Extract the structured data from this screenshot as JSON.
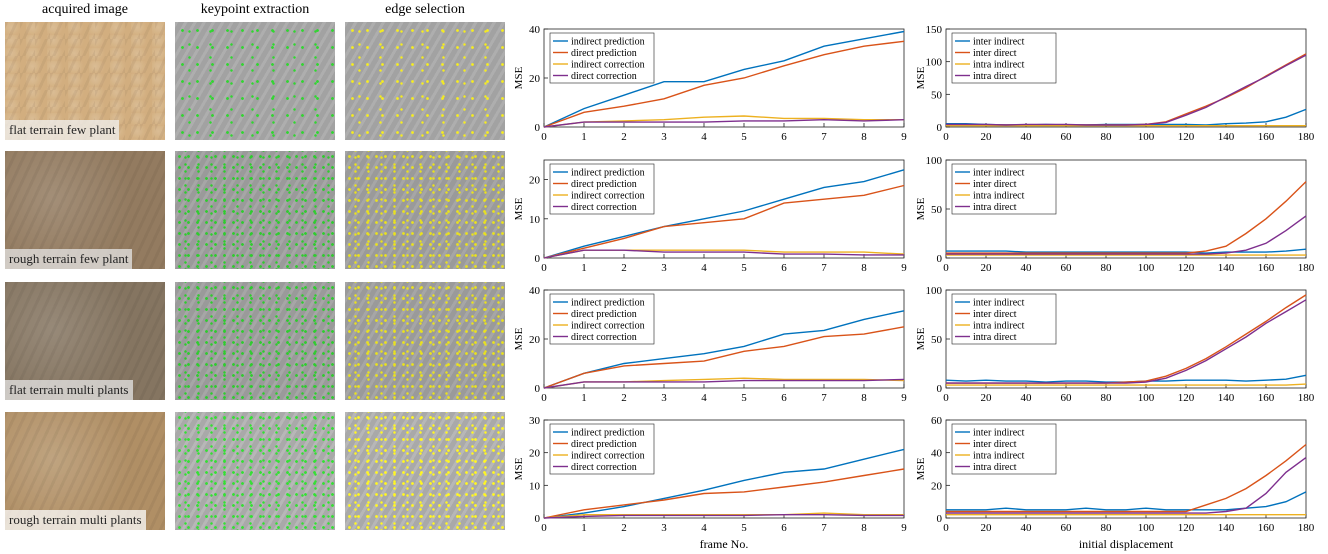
{
  "figure": {
    "columns": [
      "acquired image",
      "keypoint extraction",
      "edge selection"
    ],
    "row_labels": [
      "flat terrain few plant",
      "rough terrain few plant",
      "flat terrain multi plants",
      "rough terrain multi plants"
    ]
  },
  "chart_data": [
    {
      "type": "line",
      "ylabel": "MSE",
      "x": [
        0,
        1,
        2,
        3,
        4,
        5,
        6,
        7,
        8,
        9
      ],
      "xlim": [
        0,
        9
      ],
      "xticks": [
        0,
        1,
        2,
        3,
        4,
        5,
        6,
        7,
        8,
        9
      ],
      "ylim": [
        0,
        40
      ],
      "yticks": [
        0,
        20,
        40
      ],
      "legend": "upper left",
      "series": [
        {
          "name": "indirect prediction",
          "color": "#0072bd",
          "values": [
            0,
            7.5,
            13,
            18.5,
            18.5,
            23.5,
            27,
            33,
            36,
            39
          ]
        },
        {
          "name": "direct prediction",
          "color": "#d95319",
          "values": [
            0,
            6,
            8.5,
            11.5,
            17,
            20,
            25,
            29.5,
            33,
            35
          ]
        },
        {
          "name": "indirect correction",
          "color": "#edb120",
          "values": [
            0,
            2,
            2.5,
            3,
            4,
            4.5,
            3.5,
            3.5,
            3,
            3
          ]
        },
        {
          "name": "direct correction",
          "color": "#7e2f8e",
          "values": [
            0,
            2,
            2,
            2,
            2,
            2.5,
            2.5,
            3,
            2.5,
            3
          ]
        }
      ]
    },
    {
      "type": "line",
      "ylabel": "MSE",
      "x": [
        0,
        1,
        2,
        3,
        4,
        5,
        6,
        7,
        8,
        9
      ],
      "xlim": [
        0,
        9
      ],
      "xticks": [
        0,
        1,
        2,
        3,
        4,
        5,
        6,
        7,
        8,
        9
      ],
      "ylim": [
        0,
        25
      ],
      "yticks": [
        0,
        10,
        20
      ],
      "legend": "upper left",
      "series": [
        {
          "name": "indirect prediction",
          "color": "#0072bd",
          "values": [
            0,
            3,
            5.5,
            8,
            10,
            12,
            15,
            18,
            19.5,
            22.5
          ]
        },
        {
          "name": "direct prediction",
          "color": "#d95319",
          "values": [
            0,
            2.5,
            5,
            8,
            9,
            10,
            14,
            15,
            16,
            18.5
          ]
        },
        {
          "name": "indirect correction",
          "color": "#edb120",
          "values": [
            0,
            2,
            2,
            2,
            2,
            2,
            1.5,
            1.5,
            1.5,
            1
          ]
        },
        {
          "name": "direct correction",
          "color": "#7e2f8e",
          "values": [
            0,
            2,
            2,
            1.5,
            1.5,
            1.5,
            1,
            1,
            0.8,
            0.8
          ]
        }
      ]
    },
    {
      "type": "line",
      "ylabel": "MSE",
      "x": [
        0,
        1,
        2,
        3,
        4,
        5,
        6,
        7,
        8,
        9
      ],
      "xlim": [
        0,
        9
      ],
      "xticks": [
        0,
        1,
        2,
        3,
        4,
        5,
        6,
        7,
        8,
        9
      ],
      "ylim": [
        0,
        40
      ],
      "yticks": [
        0,
        20,
        40
      ],
      "legend": "upper left",
      "series": [
        {
          "name": "indirect prediction",
          "color": "#0072bd",
          "values": [
            0,
            6,
            10,
            12,
            14,
            17,
            22,
            23.5,
            28,
            31.5
          ]
        },
        {
          "name": "direct prediction",
          "color": "#d95319",
          "values": [
            0,
            6,
            9,
            10,
            11,
            15,
            17,
            21,
            22,
            25
          ]
        },
        {
          "name": "indirect correction",
          "color": "#edb120",
          "values": [
            0,
            2.5,
            2.5,
            3,
            3.5,
            4,
            3.5,
            3.5,
            3.5,
            3
          ]
        },
        {
          "name": "direct correction",
          "color": "#7e2f8e",
          "values": [
            0,
            2.5,
            2.5,
            2.5,
            2.5,
            3,
            3,
            3,
            3,
            3.5
          ]
        }
      ]
    },
    {
      "type": "line",
      "ylabel": "MSE",
      "xlabel": "frame No.",
      "x": [
        0,
        1,
        2,
        3,
        4,
        5,
        6,
        7,
        8,
        9
      ],
      "xlim": [
        0,
        9
      ],
      "xticks": [
        0,
        1,
        2,
        3,
        4,
        5,
        6,
        7,
        8,
        9
      ],
      "ylim": [
        0,
        30
      ],
      "yticks": [
        0,
        10,
        20,
        30
      ],
      "legend": "upper left",
      "series": [
        {
          "name": "indirect prediction",
          "color": "#0072bd",
          "values": [
            0,
            1.5,
            3.5,
            6,
            8.5,
            11.5,
            14,
            15,
            18,
            21
          ]
        },
        {
          "name": "direct prediction",
          "color": "#d95319",
          "values": [
            0,
            2.5,
            4,
            5.5,
            7.5,
            8,
            9.5,
            11,
            13,
            15
          ]
        },
        {
          "name": "indirect correction",
          "color": "#edb120",
          "values": [
            0,
            1,
            1,
            1,
            1,
            1,
            1,
            1.5,
            1,
            1
          ]
        },
        {
          "name": "direct correction",
          "color": "#7e2f8e",
          "values": [
            0,
            0.5,
            0.8,
            0.8,
            0.8,
            0.8,
            1,
            1,
            0.8,
            0.8
          ]
        }
      ]
    },
    {
      "type": "line",
      "ylabel": "MSE",
      "x": [
        0,
        10,
        20,
        30,
        40,
        50,
        60,
        70,
        80,
        90,
        100,
        110,
        120,
        130,
        140,
        150,
        160,
        170,
        180
      ],
      "xlim": [
        0,
        180
      ],
      "xticks": [
        0,
        20,
        40,
        60,
        80,
        100,
        120,
        140,
        160,
        180
      ],
      "ylim": [
        0,
        150
      ],
      "yticks": [
        0,
        50,
        100,
        150
      ],
      "legend": "upper left",
      "series": [
        {
          "name": "inter indirect",
          "color": "#0072bd",
          "values": [
            5,
            5,
            4,
            3,
            3,
            4,
            3,
            3,
            4,
            4,
            4,
            4,
            4,
            3,
            5,
            6,
            8,
            15,
            27
          ]
        },
        {
          "name": "inter direct",
          "color": "#d95319",
          "values": [
            3,
            3,
            3,
            3,
            3,
            3,
            3,
            3,
            3,
            3,
            4,
            8,
            20,
            32,
            45,
            60,
            78,
            95,
            112
          ]
        },
        {
          "name": "intra indirect",
          "color": "#edb120",
          "values": [
            2,
            2,
            2,
            2,
            2,
            2,
            2,
            2,
            2,
            2,
            2,
            2,
            2,
            2,
            2,
            2,
            2,
            2,
            2
          ]
        },
        {
          "name": "intra direct",
          "color": "#7e2f8e",
          "values": [
            4,
            4,
            4,
            3,
            4,
            4,
            4,
            3,
            3,
            3,
            4,
            7,
            18,
            30,
            46,
            62,
            77,
            94,
            110
          ]
        }
      ]
    },
    {
      "type": "line",
      "ylabel": "MSE",
      "x": [
        0,
        10,
        20,
        30,
        40,
        50,
        60,
        70,
        80,
        90,
        100,
        110,
        120,
        130,
        140,
        150,
        160,
        170,
        180
      ],
      "xlim": [
        0,
        180
      ],
      "xticks": [
        0,
        20,
        40,
        60,
        80,
        100,
        120,
        140,
        160,
        180
      ],
      "ylim": [
        0,
        100
      ],
      "yticks": [
        0,
        50,
        100
      ],
      "legend": "upper left",
      "series": [
        {
          "name": "inter indirect",
          "color": "#0072bd",
          "values": [
            7,
            7,
            7,
            7,
            6,
            6,
            6,
            6,
            6,
            6,
            6,
            6,
            6,
            5,
            6,
            6,
            6,
            7,
            9
          ]
        },
        {
          "name": "inter direct",
          "color": "#d95319",
          "values": [
            5,
            5,
            5,
            5,
            5,
            5,
            5,
            5,
            5,
            5,
            5,
            5,
            5,
            7,
            12,
            25,
            40,
            58,
            78
          ]
        },
        {
          "name": "intra indirect",
          "color": "#edb120",
          "values": [
            3,
            3,
            3,
            3,
            3,
            3,
            3,
            3,
            3,
            3,
            3,
            3,
            3,
            3,
            3,
            3,
            3,
            3,
            3
          ]
        },
        {
          "name": "intra direct",
          "color": "#7e2f8e",
          "values": [
            4,
            4,
            4,
            4,
            4,
            4,
            4,
            4,
            4,
            4,
            4,
            4,
            4,
            4,
            5,
            8,
            15,
            28,
            43
          ]
        }
      ]
    },
    {
      "type": "line",
      "ylabel": "MSE",
      "x": [
        0,
        10,
        20,
        30,
        40,
        50,
        60,
        70,
        80,
        90,
        100,
        110,
        120,
        130,
        140,
        150,
        160,
        170,
        180
      ],
      "xlim": [
        0,
        180
      ],
      "xticks": [
        0,
        20,
        40,
        60,
        80,
        100,
        120,
        140,
        160,
        180
      ],
      "ylim": [
        0,
        100
      ],
      "yticks": [
        0,
        50,
        100
      ],
      "legend": "upper left",
      "series": [
        {
          "name": "inter indirect",
          "color": "#0072bd",
          "values": [
            8,
            7,
            8,
            7,
            7,
            6,
            7,
            7,
            6,
            6,
            7,
            7,
            8,
            8,
            8,
            7,
            8,
            9,
            13
          ]
        },
        {
          "name": "inter direct",
          "color": "#d95319",
          "values": [
            5,
            5,
            5,
            5,
            5,
            5,
            5,
            5,
            5,
            6,
            7,
            12,
            20,
            30,
            42,
            55,
            68,
            82,
            95
          ]
        },
        {
          "name": "intra indirect",
          "color": "#edb120",
          "values": [
            3,
            3,
            3,
            3,
            3,
            3,
            3,
            3,
            3,
            3,
            3,
            3,
            3,
            3,
            3,
            3,
            3,
            3,
            4
          ]
        },
        {
          "name": "intra direct",
          "color": "#7e2f8e",
          "values": [
            5,
            5,
            5,
            5,
            5,
            5,
            5,
            5,
            5,
            5,
            6,
            10,
            18,
            28,
            40,
            52,
            66,
            78,
            90
          ]
        }
      ]
    },
    {
      "type": "line",
      "ylabel": "MSE",
      "xlabel": "initial displacement",
      "x": [
        0,
        10,
        20,
        30,
        40,
        50,
        60,
        70,
        80,
        90,
        100,
        110,
        120,
        130,
        140,
        150,
        160,
        170,
        180
      ],
      "xlim": [
        0,
        180
      ],
      "xticks": [
        0,
        20,
        40,
        60,
        80,
        100,
        120,
        140,
        160,
        180
      ],
      "ylim": [
        0,
        60
      ],
      "yticks": [
        0,
        20,
        40,
        60
      ],
      "legend": "upper left",
      "series": [
        {
          "name": "inter indirect",
          "color": "#0072bd",
          "values": [
            5,
            5,
            5,
            6,
            5,
            5,
            5,
            6,
            5,
            5,
            6,
            5,
            5,
            5,
            5,
            6,
            7,
            10,
            16
          ]
        },
        {
          "name": "inter direct",
          "color": "#d95319",
          "values": [
            4,
            4,
            4,
            4,
            4,
            4,
            4,
            4,
            4,
            4,
            4,
            4,
            4,
            8,
            12,
            18,
            26,
            35,
            45
          ]
        },
        {
          "name": "intra indirect",
          "color": "#edb120",
          "values": [
            2,
            2,
            2,
            2,
            2,
            2,
            2,
            2,
            2,
            2,
            2,
            2,
            2,
            2,
            2,
            2,
            2,
            2,
            2
          ]
        },
        {
          "name": "intra direct",
          "color": "#7e2f8e",
          "values": [
            3,
            3,
            3,
            3,
            3,
            3,
            3,
            3,
            3,
            3,
            3,
            3,
            3,
            3,
            4,
            6,
            15,
            28,
            37
          ]
        }
      ]
    }
  ]
}
